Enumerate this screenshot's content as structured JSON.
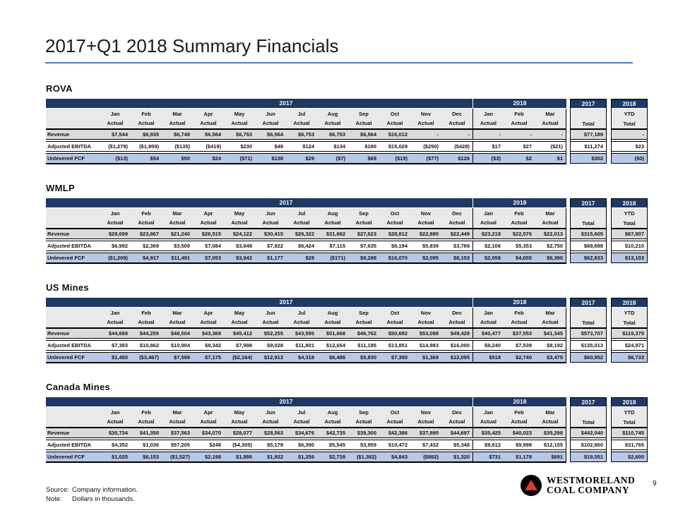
{
  "slide": {
    "title": "2017+Q1 2018 Summary Financials",
    "page_number": "9",
    "footer": {
      "source_label": "Source:",
      "source_text": "Company information.",
      "note_label": "Note:",
      "note_text": "Dollars in thousands."
    },
    "logo": {
      "line1": "WESTMORELAND",
      "line2": "COAL COMPANY"
    }
  },
  "colors": {
    "navy": "#1F3864",
    "header_gray": "#E9E9E9",
    "row_gray": "#DBDBDB",
    "row_white": "#FFFFFF",
    "row_blue": "#B8C8E8",
    "title_underline": "#4A7EBB",
    "logo_red": "#D93A35"
  },
  "table_template": {
    "year_2017_label": "2017",
    "year_2018_label": "2018",
    "months_2017": [
      "Jan",
      "Feb",
      "Mar",
      "Apr",
      "May",
      "Jun",
      "Jul",
      "Aug",
      "Sep",
      "Oct",
      "Nov",
      "Dec"
    ],
    "months_2018": [
      "Jan",
      "Feb",
      "Mar"
    ],
    "sub_label": "Actual",
    "total_block_2017": {
      "year": "2017",
      "line1": "",
      "line2": "Total"
    },
    "total_block_2018": {
      "year": "2018",
      "line1": "YTD",
      "line2": "Total"
    }
  },
  "sections": [
    {
      "name": "ROVA",
      "rows": [
        {
          "label": "Revenue",
          "values_2017": [
            "$7,544",
            "$6,935",
            "$6,748",
            "$6,564",
            "$6,753",
            "$6,564",
            "$6,753",
            "$6,753",
            "$6,564",
            "$16,012",
            "-",
            "-"
          ],
          "values_2018": [
            "-",
            "-",
            "-"
          ],
          "total_2017": "$77,189",
          "ytd_2018": "-"
        },
        {
          "label": "Adjusted EBITDA",
          "values_2017": [
            "($1,279)",
            "($1,959)",
            "($135)",
            "($419)",
            "$230",
            "$48",
            "$124",
            "$134",
            "$180",
            "$15,029",
            "($250)",
            "($428)"
          ],
          "values_2018": [
            "$17",
            "$27",
            "($21)"
          ],
          "total_2017": "$11,274",
          "ytd_2018": "$23"
        },
        {
          "label": "Unlevered FCF",
          "values_2017": [
            "($13)",
            "$54",
            "$50",
            "$24",
            "($71)",
            "$138",
            "$29",
            "($7)",
            "$69",
            "($19)",
            "($77)",
            "$126"
          ],
          "values_2018": [
            "($3)",
            "$2",
            "$1"
          ],
          "total_2017": "$302",
          "ytd_2018": "($0)"
        }
      ]
    },
    {
      "name": "WMLP",
      "rows": [
        {
          "label": "Revenue",
          "values_2017": [
            "$29,699",
            "$23,867",
            "$21,240",
            "$26,515",
            "$24,122",
            "$30,415",
            "$26,322",
            "$31,662",
            "$27,623",
            "$28,812",
            "$22,880",
            "$22,449"
          ],
          "values_2018": [
            "$23,218",
            "$22,576",
            "$22,013"
          ],
          "total_2017": "$315,605",
          "ytd_2018": "$67,807"
        },
        {
          "label": "Adjusted EBITDA",
          "values_2017": [
            "$6,992",
            "$2,369",
            "$3,509",
            "$7,084",
            "$3,848",
            "$7,922",
            "$6,424",
            "$7,115",
            "$7,635",
            "$6,194",
            "$5,839",
            "$3,769"
          ],
          "values_2018": [
            "$2,106",
            "$5,353",
            "$2,750"
          ],
          "total_2017": "$68,698",
          "ytd_2018": "$10,210"
        },
        {
          "label": "Unlevered FCF",
          "values_2017": [
            "($1,209)",
            "$4,917",
            "$11,491",
            "$7,053",
            "$3,942",
            "$1,177",
            "$28",
            "($171)",
            "$9,288",
            "$16,070",
            "$2,095",
            "$8,153"
          ],
          "values_2018": [
            "$2,058",
            "$4,655",
            "$6,390"
          ],
          "total_2017": "$62,833",
          "ytd_2018": "$13,103"
        }
      ]
    },
    {
      "name": "US Mines",
      "rows": [
        {
          "label": "Revenue",
          "values_2017": [
            "$44,668",
            "$44,255",
            "$48,504",
            "$43,369",
            "$45,412",
            "$52,255",
            "$43,595",
            "$51,668",
            "$46,762",
            "$50,692",
            "$53,098",
            "$49,428"
          ],
          "values_2018": [
            "$40,477",
            "$37,553",
            "$41,345"
          ],
          "total_2017": "$573,707",
          "ytd_2018": "$119,375"
        },
        {
          "label": "Adjusted EBITDA",
          "values_2017": [
            "$7,393",
            "$10,862",
            "$10,904",
            "$8,342",
            "$7,998",
            "$9,028",
            "$11,801",
            "$12,654",
            "$11,195",
            "$13,851",
            "$14,983",
            "$16,000"
          ],
          "values_2018": [
            "$9,240",
            "$7,539",
            "$8,192"
          ],
          "total_2017": "$135,013",
          "ytd_2018": "$24,971"
        },
        {
          "label": "Unlevered FCF",
          "values_2017": [
            "$1,450",
            "($3,467)",
            "$7,598",
            "$7,175",
            "($2,164)",
            "$12,913",
            "$4,318",
            "$6,486",
            "$5,830",
            "$7,350",
            "$1,369",
            "$12,095"
          ],
          "values_2018": [
            "$518",
            "$2,740",
            "$3,475"
          ],
          "total_2017": "$60,952",
          "ytd_2018": "$6,733"
        }
      ]
    },
    {
      "name": "Canada Mines",
      "rows": [
        {
          "label": "Revenue",
          "values_2017": [
            "$30,734",
            "$41,350",
            "$37,563",
            "$34,070",
            "$28,077",
            "$28,563",
            "$34,676",
            "$42,735",
            "$39,300",
            "$42,386",
            "$37,890",
            "$44,697"
          ],
          "values_2018": [
            "$35,425",
            "$40,023",
            "$35,298"
          ],
          "total_2017": "$442,040",
          "ytd_2018": "$110,745"
        },
        {
          "label": "Adjusted EBITDA",
          "values_2017": [
            "$4,352",
            "$1,036",
            "$57,205",
            "$248",
            "($4,305)",
            "$5,178",
            "$6,390",
            "$5,545",
            "$3,959",
            "$10,472",
            "$7,432",
            "$5,348"
          ],
          "values_2018": [
            "$9,612",
            "$9,998",
            "$12,155"
          ],
          "total_2017": "$102,860",
          "ytd_2018": "$31,765"
        },
        {
          "label": "Unlevered FCF",
          "values_2017": [
            "$1,025",
            "$6,153",
            "($1,527)",
            "$2,198",
            "$1,886",
            "$1,922",
            "$1,256",
            "$2,739",
            "($1,382)",
            "$4,843",
            "($882)",
            "$1,320"
          ],
          "values_2018": [
            "$731",
            "$1,178",
            "$691"
          ],
          "total_2017": "$19,551",
          "ytd_2018": "$2,600"
        }
      ]
    }
  ]
}
